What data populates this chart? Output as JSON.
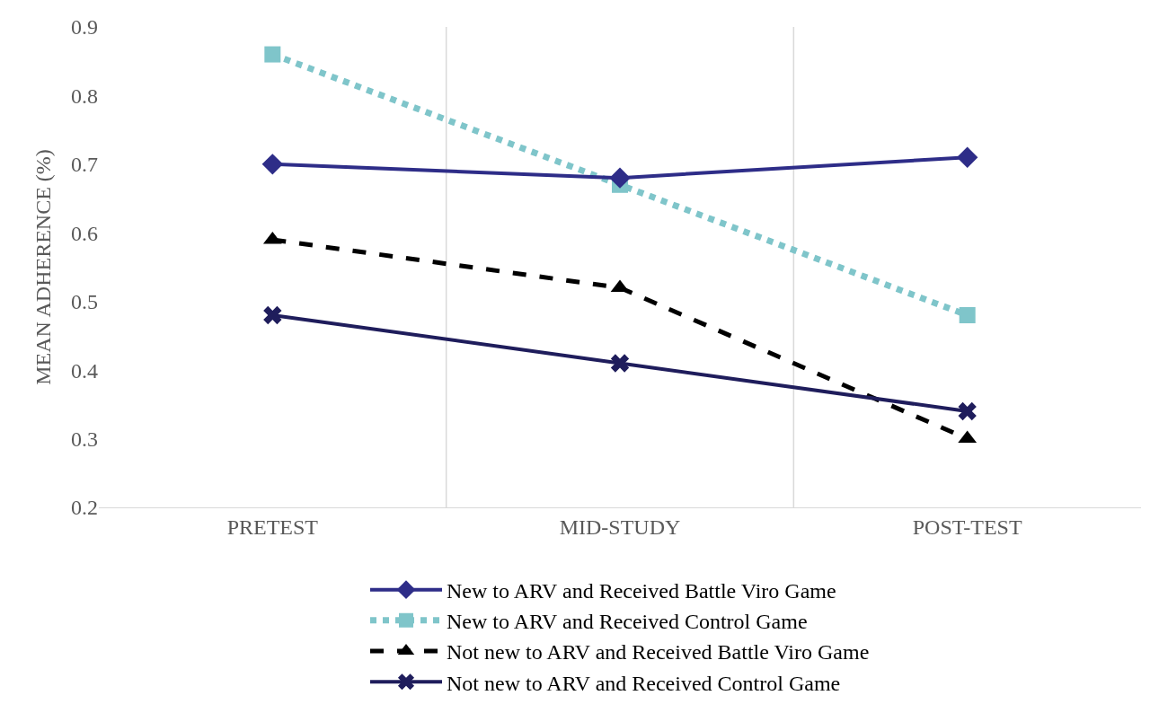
{
  "chart_data": {
    "type": "line",
    "ylabel": "MEAN ADHERENCE (%)",
    "categories": [
      "PRETEST",
      "MID-STUDY",
      "POST-TEST"
    ],
    "series": [
      {
        "name": "New to ARV and Received Battle Viro Game",
        "color": "#2e2d88",
        "values": [
          0.7,
          0.68,
          0.71
        ],
        "marker": "diamond",
        "line_style": "solid"
      },
      {
        "name": "New to ARV and Received Control Game",
        "color": "#7fc5ca",
        "values": [
          0.86,
          0.67,
          0.48
        ],
        "marker": "square",
        "line_style": "dotted"
      },
      {
        "name": "Not new to ARV and Received Battle Viro Game",
        "color": "#000000",
        "values": [
          0.59,
          0.52,
          0.3
        ],
        "marker": "triangle",
        "line_style": "dashed"
      },
      {
        "name": "Not new to ARV and Received Control Game",
        "color": "#1f1d5c",
        "values": [
          0.48,
          0.41,
          0.34
        ],
        "marker": "cross",
        "line_style": "solid"
      }
    ],
    "ylim": [
      0.2,
      0.9
    ],
    "yticks": [
      0.2,
      0.3,
      0.4,
      0.5,
      0.6,
      0.7,
      0.8,
      0.9
    ],
    "grid": "x",
    "legend": "bottom"
  }
}
